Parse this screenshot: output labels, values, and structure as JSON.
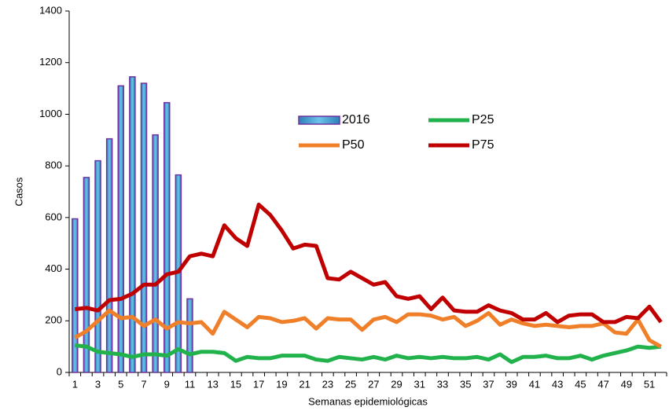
{
  "chart_data": {
    "type": "bar-line",
    "y_label": "Casos",
    "x_label": "Semanas epidemiológicas",
    "categories": [
      1,
      null,
      3,
      null,
      5,
      null,
      7,
      null,
      9,
      null,
      11,
      null,
      13,
      null,
      15,
      null,
      17,
      null,
      19,
      null,
      21,
      null,
      23,
      null,
      25,
      null,
      27,
      null,
      29,
      null,
      31,
      null,
      33,
      null,
      35,
      null,
      37,
      null,
      39,
      null,
      41,
      null,
      43,
      null,
      45,
      null,
      47,
      null,
      49,
      null,
      51,
      null
    ],
    "ylim": [
      0,
      1400
    ],
    "yticks": [
      0,
      200,
      400,
      600,
      800,
      1000,
      1200,
      1400
    ],
    "grid": false,
    "series": [
      {
        "name": "2016",
        "type": "bar",
        "color": "#4aa3d4",
        "edge_color": "#7030a0",
        "values": [
          595,
          755,
          820,
          905,
          1110,
          1145,
          1120,
          920,
          1045,
          765,
          285,
          null,
          null,
          null,
          null,
          null,
          null,
          null,
          null,
          null,
          null,
          null,
          null,
          null,
          null,
          null,
          null,
          null,
          null,
          null,
          null,
          null,
          null,
          null,
          null,
          null,
          null,
          null,
          null,
          null,
          null,
          null,
          null,
          null,
          null,
          null,
          null,
          null,
          null,
          null,
          null,
          null
        ]
      },
      {
        "name": "P25",
        "type": "line",
        "color": "#22b24c",
        "values": [
          105,
          100,
          80,
          75,
          70,
          60,
          70,
          70,
          65,
          90,
          70,
          80,
          80,
          75,
          45,
          60,
          55,
          55,
          65,
          65,
          65,
          50,
          45,
          60,
          55,
          50,
          60,
          50,
          65,
          55,
          60,
          55,
          60,
          55,
          55,
          60,
          50,
          70,
          40,
          60,
          60,
          65,
          55,
          55,
          65,
          50,
          65,
          75,
          85,
          100,
          95,
          100
        ]
      },
      {
        "name": "P50",
        "type": "line",
        "color": "#f07f2a",
        "values": [
          135,
          160,
          200,
          240,
          210,
          215,
          180,
          205,
          170,
          195,
          190,
          195,
          150,
          235,
          205,
          175,
          215,
          210,
          195,
          200,
          210,
          170,
          210,
          205,
          205,
          165,
          205,
          215,
          195,
          225,
          225,
          220,
          205,
          215,
          180,
          200,
          230,
          185,
          205,
          190,
          180,
          185,
          180,
          175,
          180,
          180,
          190,
          155,
          150,
          205,
          125,
          100
        ]
      },
      {
        "name": "P75",
        "type": "line",
        "color": "#c00000",
        "values": [
          245,
          250,
          240,
          280,
          285,
          305,
          340,
          340,
          380,
          390,
          450,
          460,
          450,
          570,
          520,
          490,
          650,
          610,
          550,
          480,
          495,
          490,
          365,
          360,
          390,
          365,
          340,
          350,
          295,
          285,
          295,
          245,
          290,
          240,
          235,
          235,
          260,
          240,
          230,
          205,
          205,
          230,
          195,
          220,
          225,
          225,
          195,
          195,
          215,
          210,
          255,
          195
        ]
      }
    ]
  }
}
